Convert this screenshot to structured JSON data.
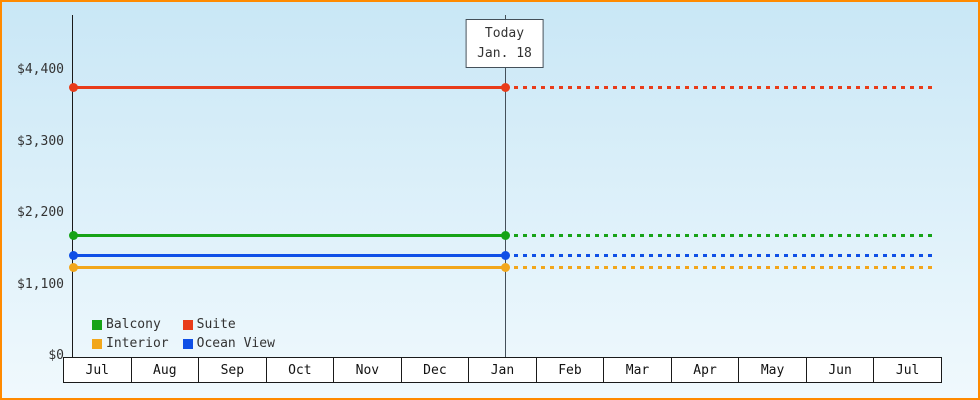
{
  "chart_data": {
    "type": "line",
    "title": "",
    "x_categories": [
      "Jul",
      "Aug",
      "Sep",
      "Oct",
      "Nov",
      "Dec",
      "Jan",
      "Feb",
      "Mar",
      "Apr",
      "May",
      "Jun",
      "Jul"
    ],
    "y_tick_values": [
      0,
      1100,
      2200,
      3300,
      4400
    ],
    "y_tick_labels": [
      "$0",
      "$1,100",
      "$2,200",
      "$3,300",
      "$4,400"
    ],
    "ylim": [
      0,
      5262
    ],
    "series": [
      {
        "name": "Suite",
        "color": "#e93c1a",
        "value": 4150
      },
      {
        "name": "Balcony",
        "color": "#17a317",
        "value": 1880
      },
      {
        "name": "Ocean View",
        "color": "#0f4fe6",
        "value": 1570
      },
      {
        "name": "Interior",
        "color": "#f2a71b",
        "value": 1390
      }
    ],
    "today_marker": {
      "line1": "Today",
      "line2": "Jan. 18",
      "month_index": 6
    },
    "legend": [
      {
        "name": "Balcony",
        "color": "#17a317"
      },
      {
        "name": "Suite",
        "color": "#e93c1a"
      },
      {
        "name": "Interior",
        "color": "#f2a71b"
      },
      {
        "name": "Ocean View",
        "color": "#0f4fe6"
      }
    ],
    "legend_position": "bottom-left",
    "grid": false,
    "line_style": {
      "solid_before_today": true,
      "dotted_after_today": true
    }
  },
  "colors": {
    "frame_border": "#ff8a00",
    "bg_top": "#c9e7f6",
    "bg_bottom": "#f0f9fd",
    "axis": "#1a1a1a",
    "today_line": "#44505a",
    "text": "#333333"
  }
}
